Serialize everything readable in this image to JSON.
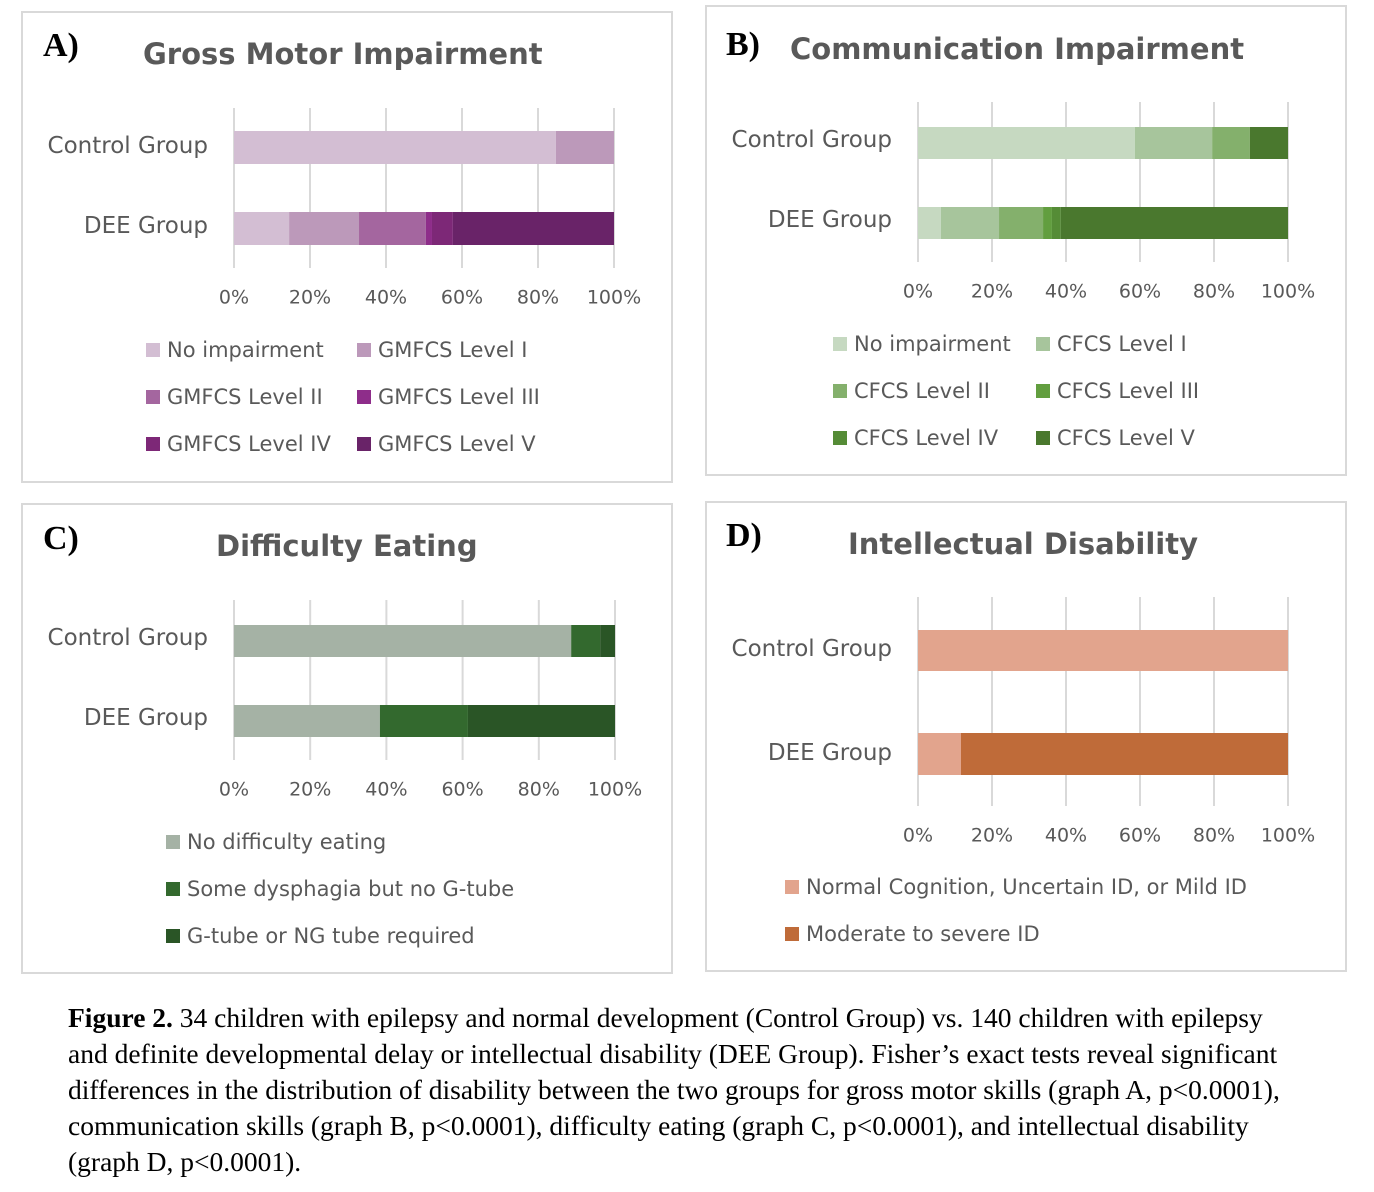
{
  "chart_data": [
    {
      "id": "A",
      "letter": "A)",
      "type": "bar",
      "orientation": "horizontal",
      "stacked": "percent",
      "title": "Gross Motor Impairment",
      "categories": [
        "Control Group",
        "DEE Group"
      ],
      "series": [
        {
          "name": "No impairment",
          "color": "#d3bed3",
          "values": [
            84.7,
            14.5
          ]
        },
        {
          "name": "GMFCS Level I",
          "color": "#bc99ba",
          "values": [
            15.3,
            18.4
          ]
        },
        {
          "name": "GMFCS Level II",
          "color": "#a4669f",
          "values": [
            0,
            17.6
          ]
        },
        {
          "name": "GMFCS Level III",
          "color": "#8e2d8a",
          "values": [
            0,
            1.6
          ]
        },
        {
          "name": "GMFCS Level IV",
          "color": "#7d2877",
          "values": [
            0,
            5.5
          ]
        },
        {
          "name": "GMFCS Level V",
          "color": "#692368",
          "values": [
            0,
            42.4
          ]
        }
      ],
      "xticks": [
        "0%",
        "20%",
        "40%",
        "60%",
        "80%",
        "100%"
      ],
      "xlim": [
        0,
        100
      ],
      "xlabel": "",
      "ylabel": "",
      "grid": "vertical",
      "legend": "bottom"
    },
    {
      "id": "B",
      "letter": "B)",
      "type": "bar",
      "orientation": "horizontal",
      "stacked": "percent",
      "title": "Communication Impairment",
      "categories": [
        "Control Group",
        "DEE Group"
      ],
      "series": [
        {
          "name": "No impairment",
          "color": "#c6d9c1",
          "values": [
            58.6,
            6.2
          ]
        },
        {
          "name": "CFCS Level I",
          "color": "#a7c59c",
          "values": [
            20.9,
            15.7
          ]
        },
        {
          "name": "CFCS Level II",
          "color": "#84b06c",
          "values": [
            10.2,
            11.9
          ]
        },
        {
          "name": "CFCS Level III",
          "color": "#629e3f",
          "values": [
            0,
            2.4
          ]
        },
        {
          "name": "CFCS Level IV",
          "color": "#558c36",
          "values": [
            0,
            2.4
          ]
        },
        {
          "name": "CFCS Level V",
          "color": "#4a782e",
          "values": [
            10.3,
            61.4
          ]
        }
      ],
      "xticks": [
        "0%",
        "20%",
        "40%",
        "60%",
        "80%",
        "100%"
      ],
      "xlim": [
        0,
        100
      ],
      "xlabel": "",
      "ylabel": "",
      "grid": "vertical",
      "legend": "bottom"
    },
    {
      "id": "C",
      "letter": "C)",
      "type": "bar",
      "orientation": "horizontal",
      "stacked": "percent",
      "title": "Difficulty Eating",
      "categories": [
        "Control Group",
        "DEE Group"
      ],
      "series": [
        {
          "name": "No difficulty eating",
          "color": "#a5b2a5",
          "values": [
            88.5,
            38.3
          ]
        },
        {
          "name": "Some dysphagia but no G-tube",
          "color": "#33692e",
          "values": [
            7.6,
            23.1
          ]
        },
        {
          "name": "G-tube or NG tube required",
          "color": "#2a5526",
          "values": [
            3.9,
            38.6
          ]
        }
      ],
      "xticks": [
        "0%",
        "20%",
        "40%",
        "60%",
        "80%",
        "100%"
      ],
      "xlim": [
        0,
        100
      ],
      "xlabel": "",
      "ylabel": "",
      "grid": "vertical",
      "legend": "bottom"
    },
    {
      "id": "D",
      "letter": "D)",
      "type": "bar",
      "orientation": "horizontal",
      "stacked": "percent",
      "title": "Intellectual Disability",
      "categories": [
        "Control Group",
        "DEE Group"
      ],
      "series": [
        {
          "name": "Normal Cognition, Uncertain ID, or Mild ID",
          "color": "#e2a48d",
          "values": [
            100,
            11.6
          ]
        },
        {
          "name": "Moderate to severe ID",
          "color": "#bf6b39",
          "values": [
            0,
            88.4
          ]
        }
      ],
      "xticks": [
        "0%",
        "20%",
        "40%",
        "60%",
        "80%",
        "100%"
      ],
      "xlim": [
        0,
        100
      ],
      "xlabel": "",
      "ylabel": "",
      "grid": "vertical",
      "legend": "bottom"
    }
  ],
  "caption": {
    "label": "Figure 2.",
    "text": " 34 children with epilepsy and normal development (Control Group) vs. 140 children with epilepsy and definite developmental delay or intellectual disability (DEE Group). Fisher’s exact tests reveal significant differences in the distribution of disability between the two groups for gross motor skills (graph A, p<0.0001), communication skills (graph B, p<0.0001), difficulty eating (graph C, p<0.0001), and intellectual disability (graph D, p<0.0001)."
  }
}
